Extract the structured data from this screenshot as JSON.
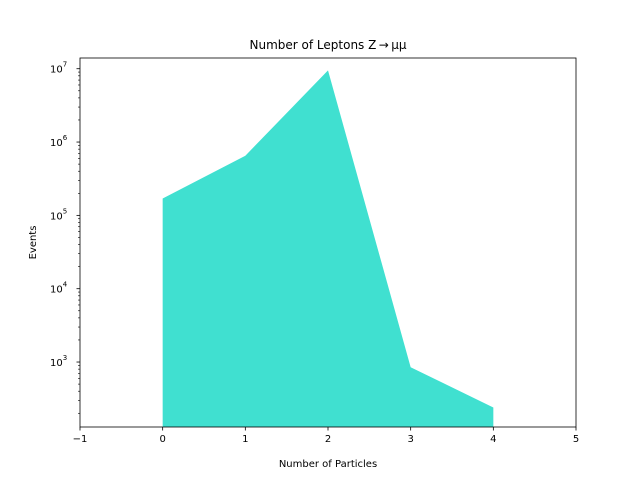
{
  "chart_data": {
    "type": "area",
    "title": "Number of Leptons Z → μμ",
    "xlabel": "Number of Particles",
    "ylabel": "Events",
    "xlim": [
      -1,
      5
    ],
    "ylim": [
      130,
      14000000
    ],
    "yscale": "log",
    "grid": false,
    "x_ticks": [
      -1,
      0,
      1,
      2,
      3,
      4,
      5
    ],
    "x_tick_labels": [
      "−1",
      "0",
      "1",
      "2",
      "3",
      "4",
      "5"
    ],
    "y_ticks": [
      {
        "value": 1000,
        "base": "10",
        "exp": "3"
      },
      {
        "value": 10000,
        "base": "10",
        "exp": "4"
      },
      {
        "value": 100000,
        "base": "10",
        "exp": "5"
      },
      {
        "value": 1000000,
        "base": "10",
        "exp": "6"
      },
      {
        "value": 10000000,
        "base": "10",
        "exp": "7"
      }
    ],
    "series": [
      {
        "x": [
          0,
          1,
          2,
          3,
          4
        ],
        "values": [
          170000,
          650000,
          9500000,
          850,
          240
        ],
        "color": "#40e0d0"
      }
    ]
  }
}
